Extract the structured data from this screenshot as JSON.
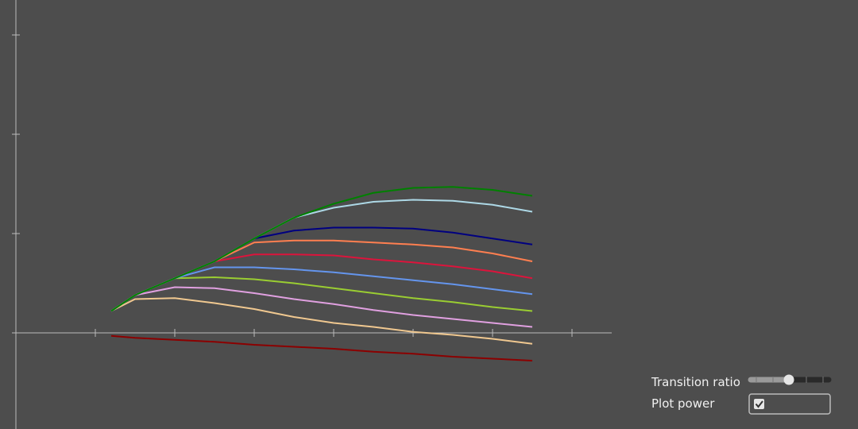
{
  "chart_data": {
    "type": "line",
    "x": [
      1.2,
      1.5,
      2,
      2.5,
      3,
      3.5,
      4,
      4.5,
      5,
      5.5,
      6,
      6.5
    ],
    "xlim": [
      -0.05,
      7.5
    ],
    "ylim": [
      -0.968,
      3.352
    ],
    "xticks": [
      1,
      2,
      3,
      4,
      5,
      6,
      7
    ],
    "yticks": [
      1,
      2,
      3
    ],
    "series": [
      {
        "color": "#8b0000",
        "values": [
          -0.03,
          -0.05,
          -0.07,
          -0.09,
          -0.12,
          -0.14,
          -0.16,
          -0.19,
          -0.21,
          -0.24,
          -0.26,
          -0.28
        ]
      },
      {
        "color": "#f0c890",
        "values": [
          0.22,
          0.34,
          0.35,
          0.3,
          0.24,
          0.16,
          0.1,
          0.06,
          0.01,
          -0.02,
          -0.06,
          -0.11
        ]
      },
      {
        "color": "#e0a0e0",
        "values": [
          0.22,
          0.38,
          0.46,
          0.45,
          0.4,
          0.34,
          0.29,
          0.23,
          0.18,
          0.14,
          0.1,
          0.06
        ]
      },
      {
        "color": "#9acd32",
        "values": [
          0.22,
          0.38,
          0.55,
          0.56,
          0.54,
          0.5,
          0.45,
          0.4,
          0.35,
          0.31,
          0.26,
          0.22
        ]
      },
      {
        "color": "#6495ed",
        "values": [
          0.22,
          0.38,
          0.55,
          0.66,
          0.66,
          0.64,
          0.61,
          0.57,
          0.53,
          0.49,
          0.44,
          0.39
        ]
      },
      {
        "color": "#dc143c",
        "values": [
          0.22,
          0.38,
          0.55,
          0.72,
          0.79,
          0.79,
          0.78,
          0.74,
          0.71,
          0.67,
          0.62,
          0.55
        ]
      },
      {
        "color": "#ff7f50",
        "values": [
          0.22,
          0.38,
          0.55,
          0.72,
          0.91,
          0.93,
          0.93,
          0.91,
          0.89,
          0.86,
          0.8,
          0.72
        ]
      },
      {
        "color": "#000080",
        "values": [
          0.22,
          0.38,
          0.55,
          0.72,
          0.95,
          1.03,
          1.06,
          1.06,
          1.05,
          1.01,
          0.95,
          0.89
        ]
      },
      {
        "color": "#add8e6",
        "values": [
          0.22,
          0.38,
          0.55,
          0.72,
          0.95,
          1.16,
          1.26,
          1.32,
          1.34,
          1.33,
          1.29,
          1.22
        ]
      },
      {
        "color": "#008000",
        "values": [
          0.22,
          0.38,
          0.55,
          0.72,
          0.95,
          1.16,
          1.3,
          1.41,
          1.46,
          1.47,
          1.44,
          1.38
        ]
      }
    ]
  },
  "controls": {
    "transition_ratio": {
      "label": "Transition ratio",
      "value": 0.49,
      "min": 0,
      "max": 1
    },
    "plot_power": {
      "label": "Plot power",
      "checked": true
    }
  }
}
